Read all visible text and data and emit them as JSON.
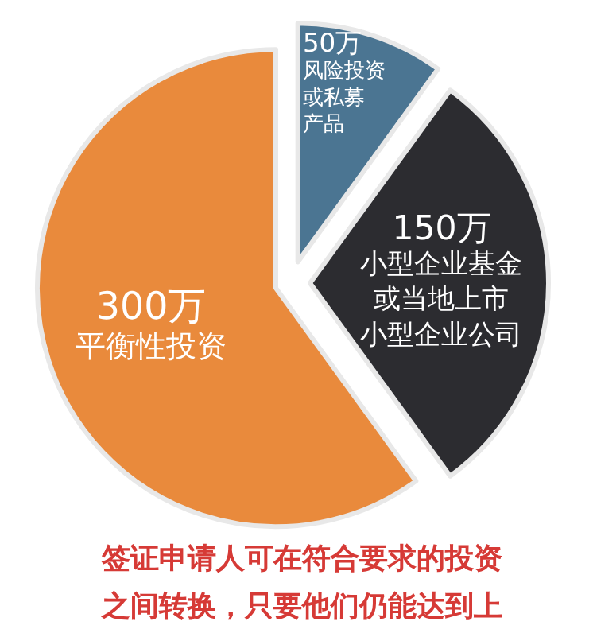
{
  "chart_data": {
    "type": "pie",
    "categories": [
      "风险投资或私募产品",
      "小型企业基金或当地上市小型企业公司",
      "平衡性投资"
    ],
    "values": [
      50,
      150,
      300
    ],
    "value_labels": [
      "50万",
      "150万",
      "300万"
    ],
    "colors": [
      "#4b7592",
      "#2c2c30",
      "#e98a3c"
    ],
    "annotations": [
      "签证申请人可在符合要求的投资之间转换，只要他们仍能达到上"
    ],
    "legend": false
  }
}
